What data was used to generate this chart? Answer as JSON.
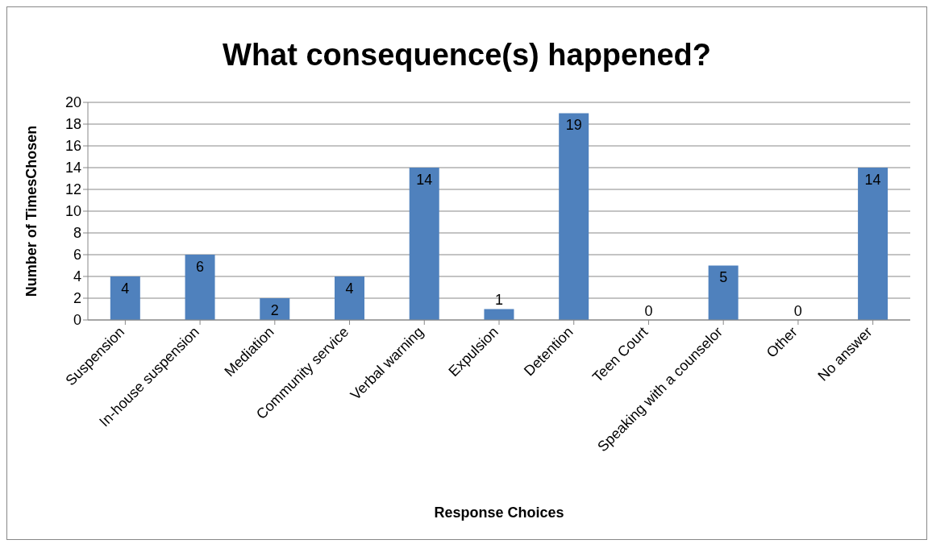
{
  "chart_data": {
    "type": "bar",
    "title": "What consequence(s) happened?",
    "xlabel": "Response Choices",
    "ylabel": "Number of TimesChosen",
    "categories": [
      "Suspension",
      "In-house suspension",
      "Mediation",
      "Community service",
      "Verbal warning",
      "Expulsion",
      "Detention",
      "Teen Court",
      "Speaking with a counselor",
      "Other",
      "No answer"
    ],
    "values": [
      4,
      6,
      2,
      4,
      14,
      1,
      19,
      0,
      5,
      0,
      14
    ],
    "color": "#4f81bd",
    "ylim": [
      0,
      20
    ],
    "yticks": [
      0,
      2,
      4,
      6,
      8,
      10,
      12,
      14,
      16,
      18,
      20
    ],
    "grid": "y",
    "data_labels": true
  }
}
